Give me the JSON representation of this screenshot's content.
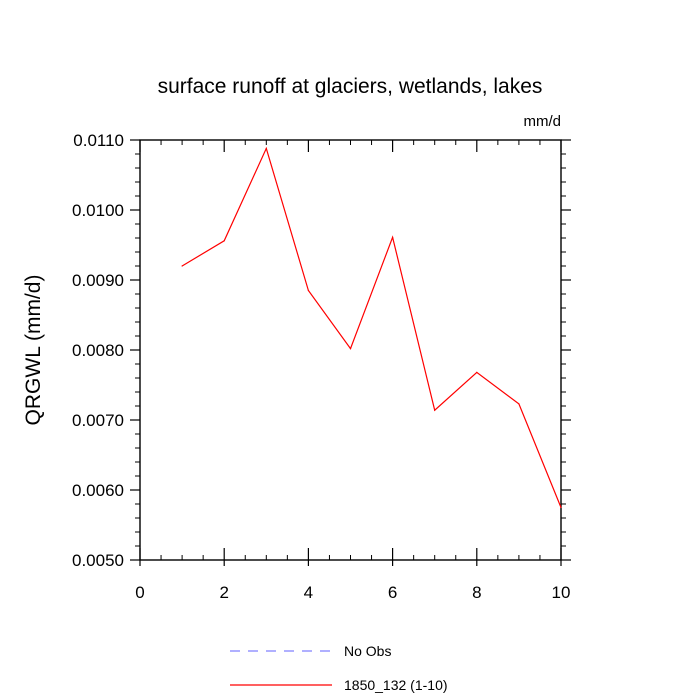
{
  "chart_data": {
    "type": "line",
    "title": "surface runoff at glaciers, wetlands, lakes",
    "units_label": "mm/d",
    "xlabel": "",
    "ylabel": "QRGWL  (mm/d)",
    "xlim": [
      0,
      10
    ],
    "ylim": [
      0.005,
      0.011
    ],
    "x_ticks": [
      0,
      2,
      4,
      6,
      8,
      10
    ],
    "x_tick_labels": [
      "0",
      "2",
      "4",
      "6",
      "8",
      "10"
    ],
    "y_ticks": [
      0.005,
      0.006,
      0.007,
      0.008,
      0.009,
      0.01,
      0.011
    ],
    "y_tick_labels": [
      "0.0050",
      "0.0060",
      "0.0070",
      "0.0080",
      "0.0090",
      "0.0100",
      "0.0110"
    ],
    "grid": false,
    "legend_position": "bottom",
    "series": [
      {
        "name": "No Obs",
        "color": "#8080ff",
        "dash": "dashed",
        "x": [],
        "y": []
      },
      {
        "name": "1850_132 (1-10)",
        "color": "#ff0000",
        "dash": "solid",
        "x": [
          1,
          2,
          3,
          4,
          5,
          6,
          7,
          8,
          9,
          10
        ],
        "y": [
          0.0092,
          0.00956,
          0.01088,
          0.00885,
          0.00802,
          0.00961,
          0.00714,
          0.00768,
          0.00723,
          0.00575
        ]
      }
    ]
  }
}
